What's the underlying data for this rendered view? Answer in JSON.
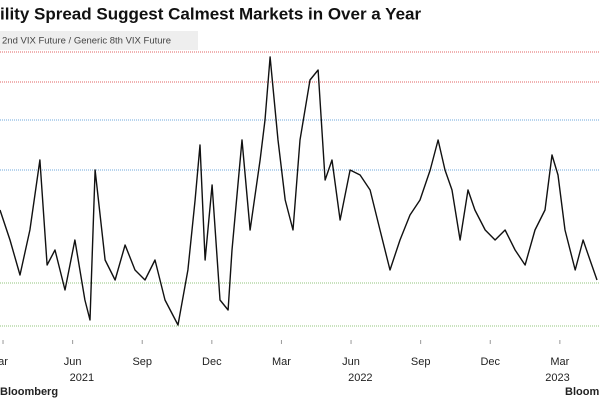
{
  "chart_data": {
    "type": "line",
    "title": "ility Spread Suggest Calmest Markets in Over a Year",
    "series": [
      {
        "name": "2nd VIX Future / Generic 8th VIX Future",
        "color": "#111111",
        "x": [
          -0.13,
          0.3,
          0.73,
          1.16,
          1.59,
          1.9,
          2.24,
          2.67,
          3.1,
          3.53,
          3.75,
          3.97,
          4.4,
          4.83,
          5.26,
          5.69,
          6.12,
          6.55,
          6.98,
          7.54,
          7.97,
          8.28,
          8.49,
          8.71,
          9.01,
          9.35,
          9.7,
          9.87,
          10.3,
          10.65,
          11.08,
          11.29,
          11.51,
          11.85,
          12.16,
          12.5,
          12.8,
          13.23,
          13.58,
          13.88,
          14.18,
          14.53,
          14.96,
          15.39,
          15.82,
          16.25,
          16.68,
          17.11,
          17.54,
          17.97,
          18.41,
          18.75,
          19.05,
          19.35,
          19.7,
          20.04,
          20.34,
          20.78,
          21.21,
          21.64,
          22.07,
          22.5,
          22.93,
          23.36,
          23.66,
          23.92,
          24.22,
          24.66,
          25.0,
          25.3,
          25.6
        ],
        "values": [
          0.91,
          0.88,
          0.845,
          0.89,
          0.96,
          0.855,
          0.87,
          0.83,
          0.88,
          0.82,
          0.8,
          0.95,
          0.86,
          0.84,
          0.875,
          0.85,
          0.84,
          0.86,
          0.82,
          0.795,
          0.85,
          0.92,
          0.975,
          0.86,
          0.935,
          0.82,
          0.81,
          0.87,
          0.98,
          0.89,
          0.96,
          1.0,
          1.063,
          0.98,
          0.92,
          0.89,
          0.98,
          1.04,
          1.05,
          0.94,
          0.96,
          0.9,
          0.95,
          0.945,
          0.93,
          0.89,
          0.85,
          0.88,
          0.905,
          0.92,
          0.95,
          0.98,
          0.95,
          0.93,
          0.88,
          0.93,
          0.91,
          0.89,
          0.88,
          0.89,
          0.87,
          0.855,
          0.89,
          0.91,
          0.965,
          0.945,
          0.89,
          0.85,
          0.88,
          0.86,
          0.84
        ]
      }
    ],
    "reference_lines": [
      {
        "value": 1.068,
        "color": "#e06666"
      },
      {
        "value": 1.038,
        "color": "#e06666"
      },
      {
        "value": 1.0,
        "color": "#6fa8dc"
      },
      {
        "value": 0.95,
        "color": "#6fa8dc"
      },
      {
        "value": 0.837,
        "color": "#93c47d"
      },
      {
        "value": 0.794,
        "color": "#93c47d"
      }
    ],
    "xlim": [
      -0.13,
      25.73
    ],
    "ylim": [
      0.78,
      1.08
    ],
    "xticks": [
      {
        "value": 0,
        "label": "ar"
      },
      {
        "value": 3,
        "label": "Jun"
      },
      {
        "value": 6,
        "label": "Sep"
      },
      {
        "value": 9,
        "label": "Dec"
      },
      {
        "value": 12,
        "label": "Mar"
      },
      {
        "value": 15,
        "label": "Jun"
      },
      {
        "value": 18,
        "label": "Sep"
      },
      {
        "value": 21,
        "label": "Dec"
      },
      {
        "value": 24,
        "label": "Mar"
      }
    ],
    "year_ticks": [
      {
        "value": 3.4,
        "label": "2021"
      },
      {
        "value": 15.4,
        "label": "2022"
      },
      {
        "value": 23.9,
        "label": "2023"
      }
    ],
    "source": "Bloomberg",
    "source_right": "Bloom"
  }
}
